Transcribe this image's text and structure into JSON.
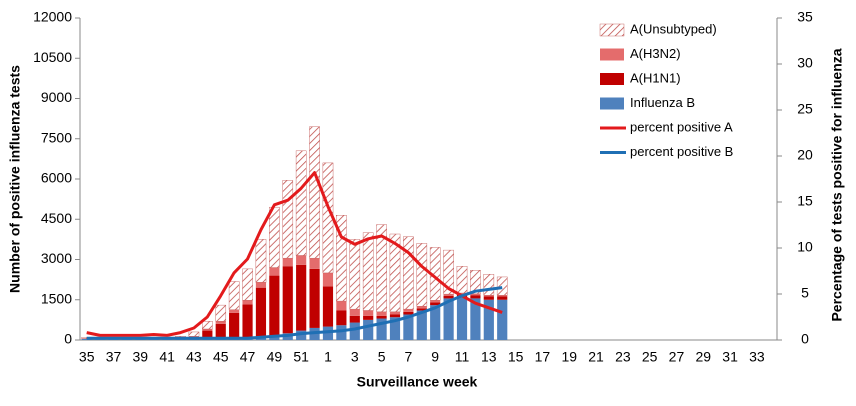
{
  "chart_data": {
    "type": "bar",
    "x_label": "Surveillance  week",
    "y_label": "Number of positive influenza tests",
    "y2_label": "Percentage of tests positive for influenza",
    "categories": [
      "35",
      null,
      "37",
      null,
      "39",
      null,
      "41",
      null,
      "43",
      null,
      "45",
      null,
      "47",
      null,
      "49",
      null,
      "51",
      null,
      "1",
      null,
      "3",
      null,
      "5",
      null,
      "7",
      null,
      "9",
      null,
      "11",
      null,
      "13",
      null,
      "15",
      null,
      "17",
      null,
      "19",
      null,
      "21",
      null,
      "23",
      null,
      "25",
      null,
      "27",
      null,
      "29",
      null,
      "31",
      null,
      "33",
      null
    ],
    "ylim": [
      0,
      12000
    ],
    "yticks": [
      0,
      1500,
      3000,
      4500,
      6000,
      7500,
      9000,
      10500,
      12000
    ],
    "y2lim": [
      0,
      35
    ],
    "y2ticks": [
      0,
      5,
      10,
      15,
      20,
      25,
      30,
      35
    ],
    "stacked": true,
    "series": [
      {
        "name": "A(Unsubtyped)",
        "type": "bar",
        "color": "#c0504d",
        "hatch": true,
        "values": [
          45,
          35,
          35,
          35,
          35,
          45,
          50,
          60,
          160,
          290,
          600,
          1050,
          1170,
          1600,
          2250,
          2900,
          3900,
          4900,
          4100,
          3200,
          2600,
          2900,
          3250,
          2900,
          2700,
          2340,
          1970,
          1640,
          1000,
          880,
          780,
          680,
          null,
          null,
          null,
          null,
          null,
          null,
          null,
          null,
          null,
          null,
          null,
          null,
          null,
          null,
          null,
          null,
          null,
          null,
          null,
          null
        ]
      },
      {
        "name": "A(H3N2)",
        "type": "bar",
        "color": "#e46c6c",
        "values": [
          5,
          5,
          5,
          5,
          5,
          5,
          5,
          10,
          20,
          60,
          100,
          120,
          150,
          200,
          300,
          300,
          350,
          400,
          500,
          350,
          250,
          200,
          150,
          100,
          100,
          80,
          80,
          60,
          50,
          50,
          40,
          40,
          null,
          null,
          null,
          null,
          null,
          null,
          null,
          null,
          null,
          null,
          null,
          null,
          null,
          null,
          null,
          null,
          null,
          null,
          null,
          null
        ]
      },
      {
        "name": "A(H1N1)",
        "type": "bar",
        "color": "#c00000",
        "values": [
          10,
          10,
          10,
          10,
          10,
          10,
          20,
          30,
          80,
          300,
          550,
          950,
          1250,
          1850,
          2250,
          2500,
          2450,
          2200,
          1500,
          550,
          250,
          150,
          100,
          100,
          100,
          80,
          100,
          100,
          100,
          120,
          130,
          130,
          null,
          null,
          null,
          null,
          null,
          null,
          null,
          null,
          null,
          null,
          null,
          null,
          null,
          null,
          null,
          null,
          null,
          null,
          null,
          null
        ]
      },
      {
        "name": "Influenza B",
        "type": "bar",
        "color": "#4f81bd",
        "values": [
          40,
          30,
          30,
          30,
          30,
          30,
          30,
          40,
          40,
          50,
          50,
          60,
          80,
          100,
          150,
          250,
          350,
          450,
          500,
          550,
          650,
          750,
          800,
          850,
          950,
          1100,
          1300,
          1550,
          1600,
          1550,
          1500,
          1500,
          null,
          null,
          null,
          null,
          null,
          null,
          null,
          null,
          null,
          null,
          null,
          null,
          null,
          null,
          null,
          null,
          null,
          null,
          null,
          null
        ]
      },
      {
        "name": "percent positive A",
        "type": "line",
        "axis": "y2",
        "color": "#e31a1c",
        "values": [
          0.8,
          0.5,
          0.5,
          0.5,
          0.5,
          0.6,
          0.5,
          0.8,
          1.3,
          2.5,
          4.8,
          7.3,
          8.8,
          12,
          14.7,
          15.2,
          16.5,
          18.2,
          14.5,
          11.2,
          10.4,
          11,
          11.3,
          10.5,
          9.5,
          8,
          6.8,
          5.6,
          4.8,
          4,
          3.5,
          3,
          null,
          null,
          null,
          null,
          null,
          null,
          null,
          null,
          null,
          null,
          null,
          null,
          null,
          null,
          null,
          null,
          null,
          null,
          null,
          null
        ]
      },
      {
        "name": "percent positive B",
        "type": "line",
        "axis": "y2",
        "color": "#1f6fb4",
        "values": [
          0.2,
          0.2,
          0.2,
          0.2,
          0.2,
          0.2,
          0.2,
          0.2,
          0.2,
          0.2,
          0.2,
          0.2,
          0.2,
          0.3,
          0.4,
          0.5,
          0.7,
          0.8,
          0.9,
          1,
          1.2,
          1.5,
          1.8,
          2.1,
          2.5,
          3,
          3.5,
          4.2,
          4.8,
          5.3,
          5.5,
          5.7,
          null,
          null,
          null,
          null,
          null,
          null,
          null,
          null,
          null,
          null,
          null,
          null,
          null,
          null,
          null,
          null,
          null,
          null,
          null,
          null
        ]
      }
    ]
  }
}
